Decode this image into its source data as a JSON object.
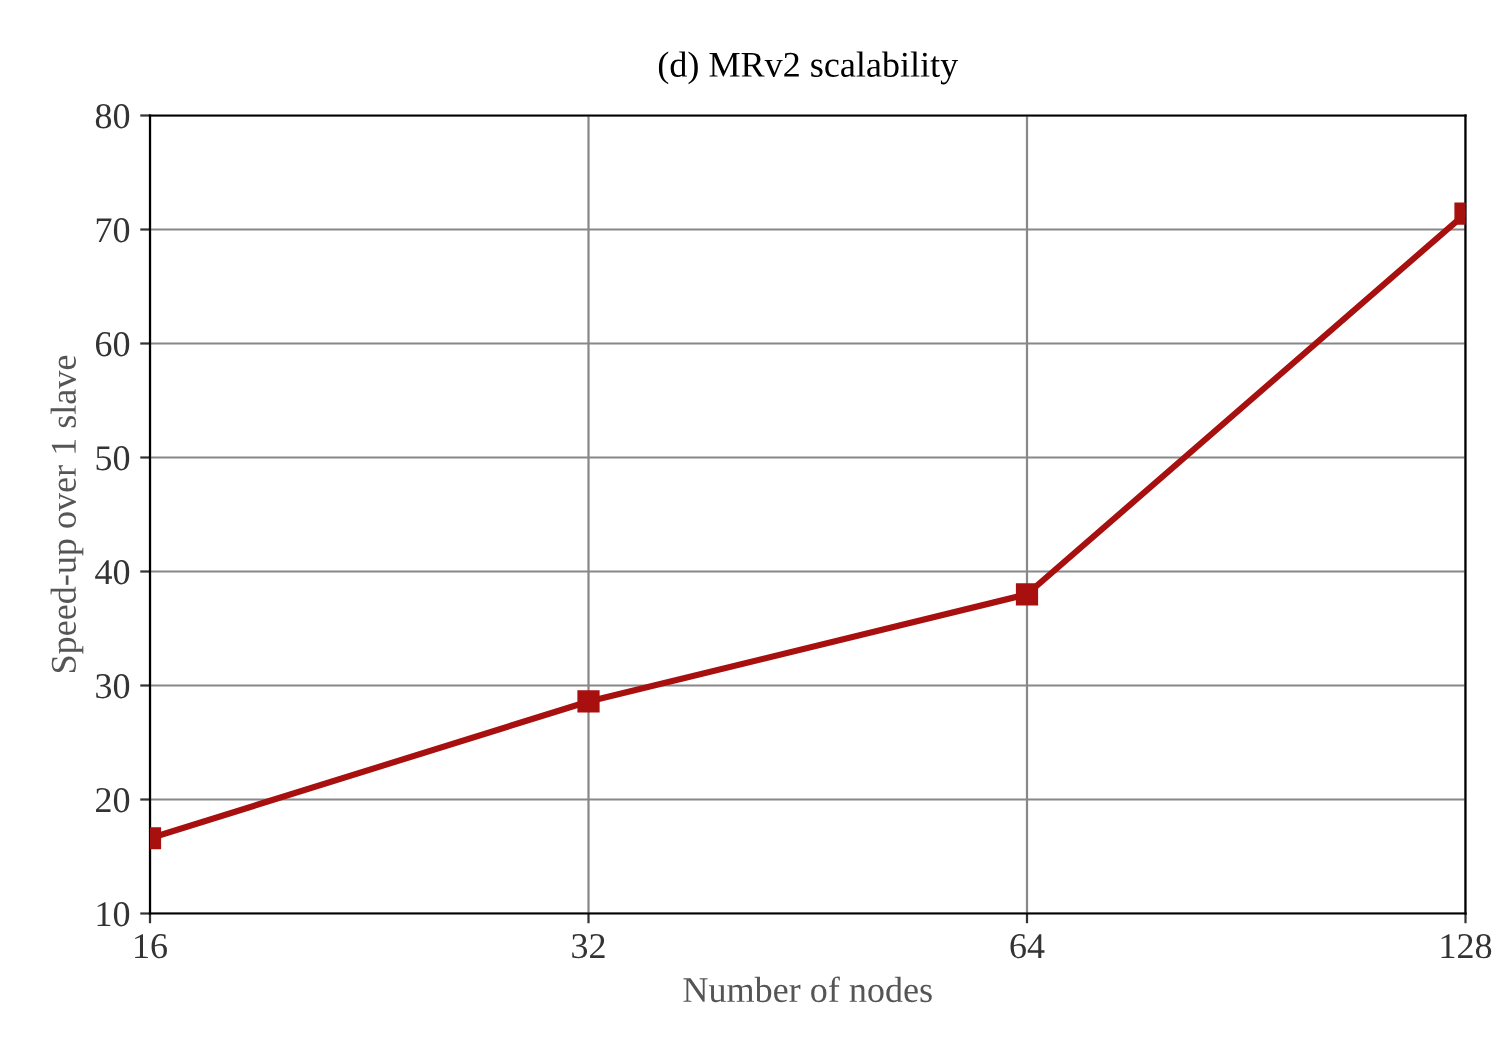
{
  "chart_data": {
    "type": "line",
    "title": "(d) MRv2 scalability",
    "xlabel": "Number of nodes",
    "ylabel": "Speed-up over 1 slave",
    "x": [
      16,
      32,
      64,
      128
    ],
    "series": [
      {
        "color": "#a80f0f",
        "values": [
          16.6,
          28.6,
          38.0,
          71.4
        ]
      }
    ],
    "log": "x",
    "xlim": [
      16,
      128
    ],
    "xticks": [
      16,
      32,
      64,
      128
    ],
    "ylim": [
      10,
      80
    ],
    "yticks": [
      10,
      20,
      30,
      40,
      50,
      60,
      70,
      80
    ],
    "grid": true,
    "marker": "square",
    "line_style": "solid",
    "legend": false
  }
}
